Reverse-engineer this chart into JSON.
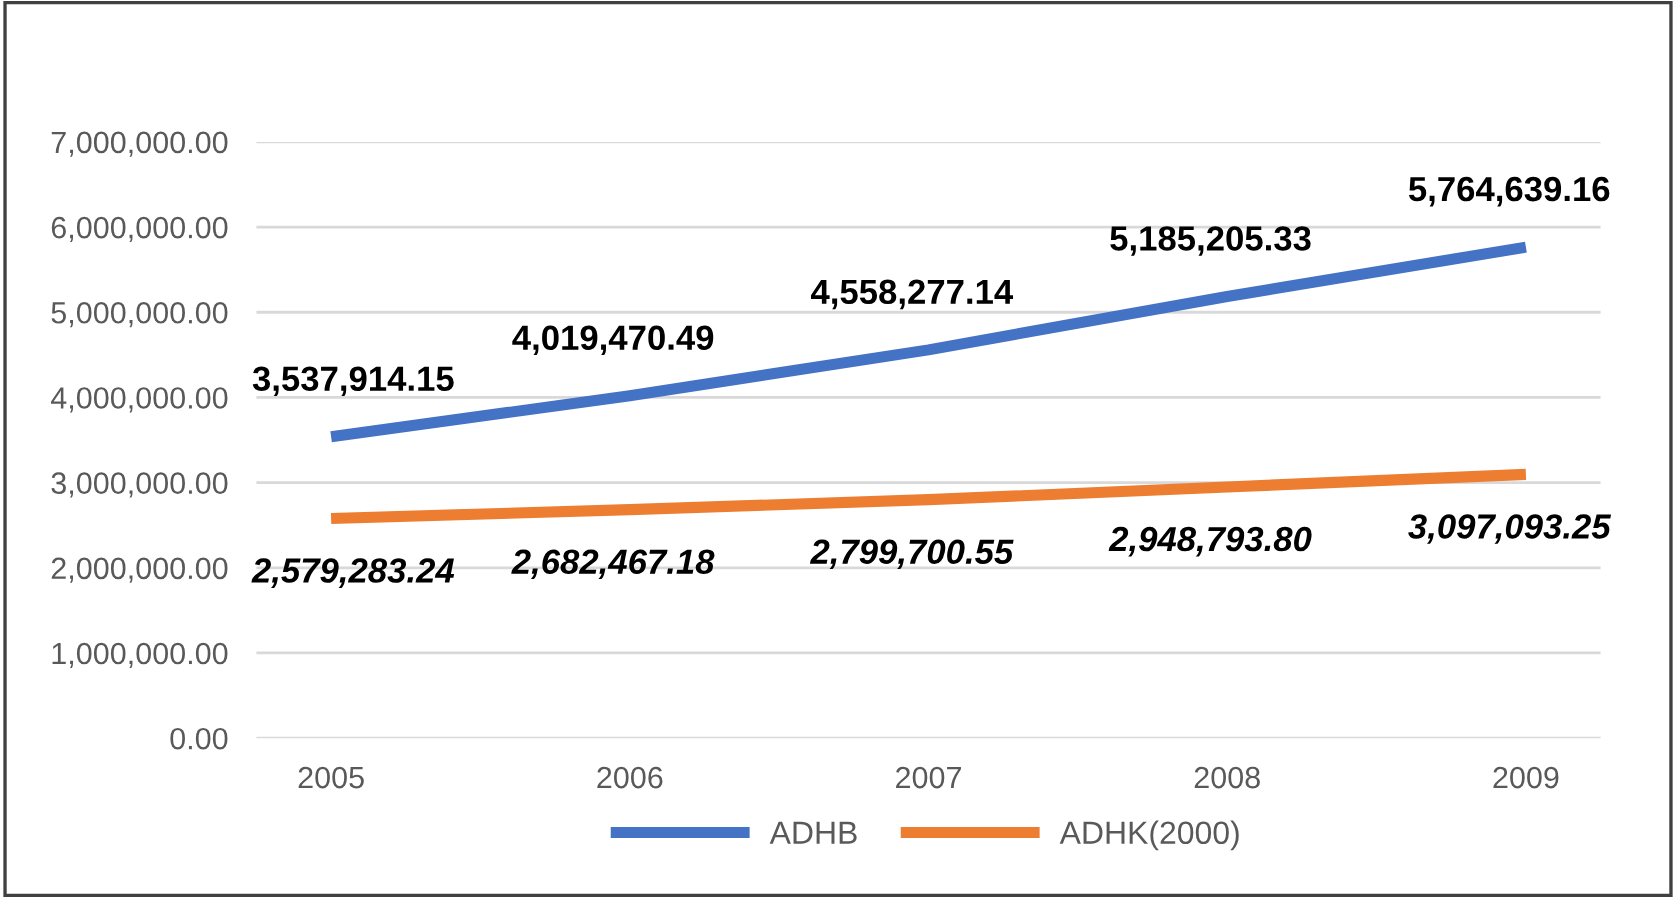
{
  "chart_data": {
    "type": "line",
    "categories": [
      "2005",
      "2006",
      "2007",
      "2008",
      "2009"
    ],
    "series": [
      {
        "name": "ADHB",
        "color": "#4472c4",
        "values": [
          3537914.15,
          4019470.49,
          4558277.14,
          5185205.33,
          5764639.16
        ],
        "value_labels": [
          "3,537,914.15",
          "4,019,470.49",
          "4,558,277.14",
          "5,185,205.33",
          "5,764,639.16"
        ]
      },
      {
        "name": "ADHK(2000)",
        "color": "#ed7d31",
        "values": [
          2579283.24,
          2682467.18,
          2799700.55,
          2948793.8,
          3097093.25
        ],
        "value_labels": [
          "2,579,283.24",
          "2,682,467.18",
          "2,799,700.55",
          "2,948,793.80",
          "3,097,093.25"
        ]
      }
    ],
    "ylim": [
      0,
      7000000
    ],
    "yticks": [
      {
        "value": 0,
        "label": "0.00"
      },
      {
        "value": 1000000,
        "label": "1,000,000.00"
      },
      {
        "value": 2000000,
        "label": "2,000,000.00"
      },
      {
        "value": 3000000,
        "label": "3,000,000.00"
      },
      {
        "value": 4000000,
        "label": "4,000,000.00"
      },
      {
        "value": 5000000,
        "label": "5,000,000.00"
      },
      {
        "value": 6000000,
        "label": "6,000,000.00"
      },
      {
        "value": 7000000,
        "label": "7,000,000.00"
      }
    ],
    "grid": "y",
    "legend": "bottom",
    "marker": "none",
    "line_style": "solid"
  }
}
